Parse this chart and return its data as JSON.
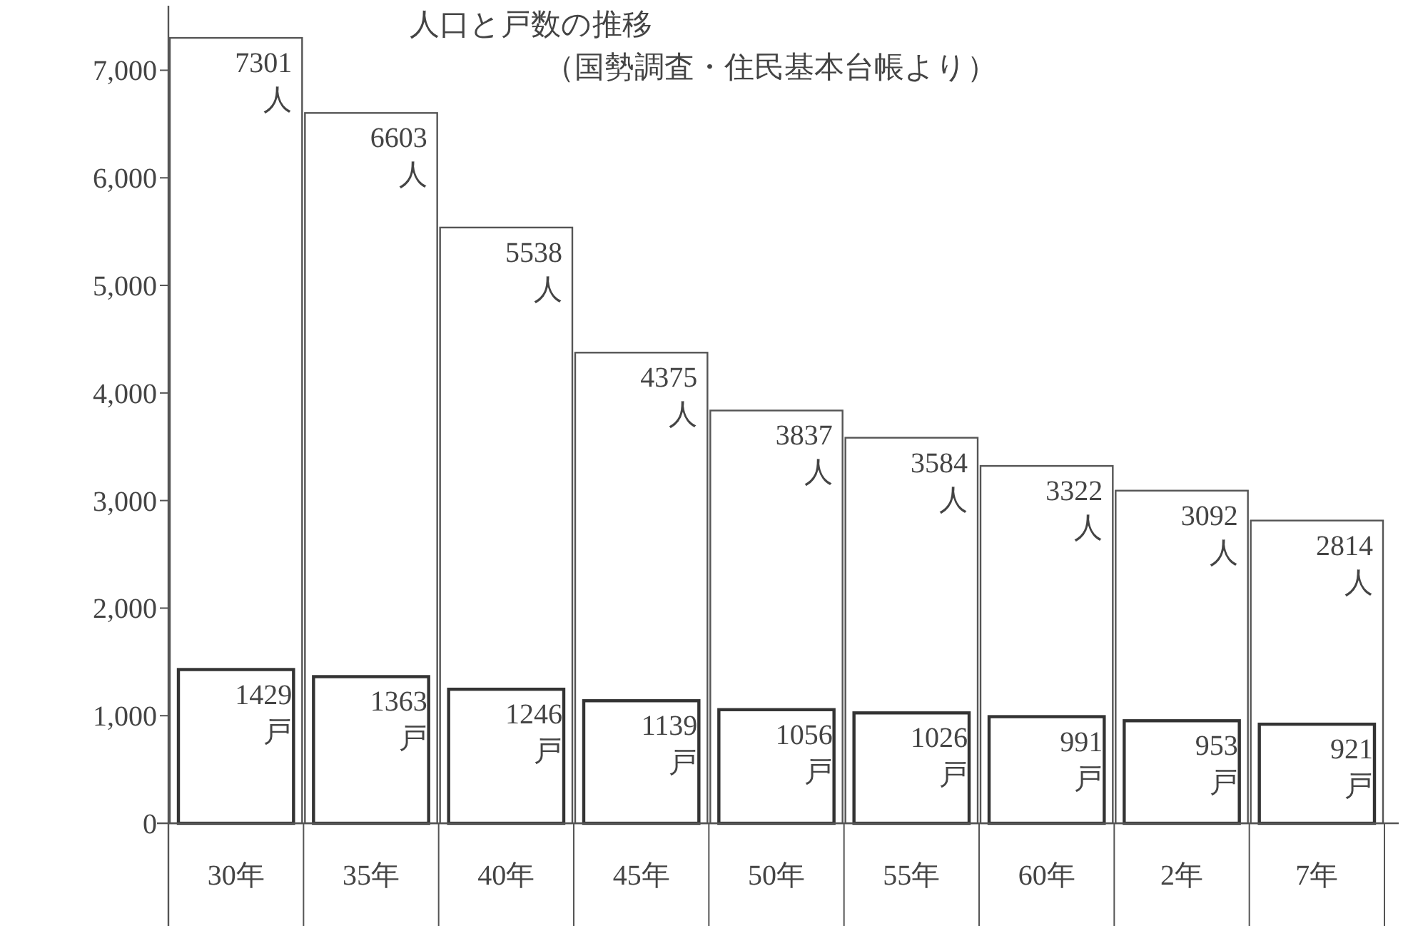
{
  "chart_data": {
    "type": "bar",
    "title": "人口と戸数の推移",
    "subtitle": "（国勢調査・住民基本台帳より）",
    "categories": [
      "30年",
      "35年",
      "40年",
      "45年",
      "50年",
      "55年",
      "60年",
      "2年",
      "7年"
    ],
    "series": [
      {
        "color": "#555555",
        "values": [
          7301,
          6603,
          5538,
          4375,
          3837,
          3584,
          3322,
          3092,
          2814
        ],
        "value_labels": [
          "7301人",
          "6603人",
          "5538人",
          "4375人",
          "3837人",
          "3584人",
          "3322人",
          "3092人",
          "2814人"
        ]
      },
      {
        "color": "#333333",
        "values": [
          1429,
          1363,
          1246,
          1139,
          1056,
          1026,
          991,
          953,
          921
        ],
        "value_labels": [
          "1429戸",
          "1363戸",
          "1246戸",
          "1139戸",
          "1056戸",
          "1026戸",
          "991戸",
          "953戸",
          "921戸"
        ]
      }
    ],
    "ylim": [
      0,
      7600
    ],
    "yticks": [
      {
        "value": 0,
        "label": "0"
      },
      {
        "value": 1000,
        "label": "1,000"
      },
      {
        "value": 2000,
        "label": "2,000"
      },
      {
        "value": 3000,
        "label": "3,000"
      },
      {
        "value": 4000,
        "label": "4,000"
      },
      {
        "value": 5000,
        "label": "5,000"
      },
      {
        "value": 6000,
        "label": "6,000"
      },
      {
        "value": 7000,
        "label": "7,000"
      }
    ],
    "grid": false
  }
}
